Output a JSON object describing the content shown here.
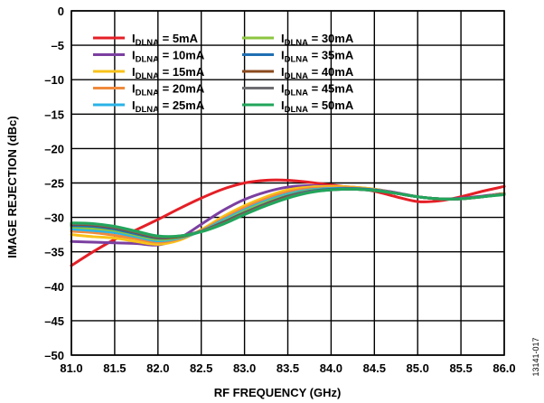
{
  "figure_id": "13141-017",
  "chart_data": {
    "type": "line",
    "title": "",
    "xlabel": "RF FREQUENCY (GHz)",
    "ylabel": "IMAGE REJECTION (dBc)",
    "xlim": [
      81.0,
      86.0
    ],
    "ylim": [
      -50,
      0
    ],
    "grid": true,
    "legend_position": "top-left",
    "x_ticks": [
      "81.0",
      "81.5",
      "82.0",
      "82.5",
      "83.0",
      "83.5",
      "84.0",
      "84.5",
      "85.0",
      "85.5",
      "86.0"
    ],
    "y_ticks": [
      "0",
      "–5",
      "–10",
      "–15",
      "–20",
      "–25",
      "–30",
      "–35",
      "–40",
      "–45",
      "–50"
    ],
    "x_tick_values": [
      81.0,
      81.5,
      82.0,
      82.5,
      83.0,
      83.5,
      84.0,
      84.5,
      85.0,
      85.5,
      86.0
    ],
    "y_tick_values": [
      0,
      -5,
      -10,
      -15,
      -20,
      -25,
      -30,
      -35,
      -40,
      -45,
      -50
    ],
    "x": [
      81.0,
      81.25,
      81.5,
      81.75,
      82.0,
      82.25,
      82.5,
      82.75,
      83.0,
      83.25,
      83.5,
      83.75,
      84.0,
      84.25,
      84.5,
      84.75,
      85.0,
      85.25,
      85.5,
      85.75,
      86.0
    ],
    "series": [
      {
        "name_main": "I",
        "name_sub": "DLNA",
        "name_rest": " = 5mA",
        "color": "#e41f26",
        "values": [
          -37.0,
          -35.0,
          -33.2,
          -31.8,
          -30.3,
          -28.7,
          -27.2,
          -25.9,
          -25.0,
          -24.6,
          -24.6,
          -24.9,
          -25.3,
          -25.7,
          -26.2,
          -27.0,
          -27.7,
          -27.6,
          -27.0,
          -26.2,
          -25.5
        ]
      },
      {
        "name_main": "I",
        "name_sub": "DLNA",
        "name_rest": " = 10mA",
        "color": "#7b3fa0",
        "values": [
          -33.5,
          -33.6,
          -33.7,
          -33.8,
          -34.0,
          -33.0,
          -31.0,
          -29.0,
          -27.4,
          -26.3,
          -25.6,
          -25.4,
          -25.5,
          -25.6,
          -25.9,
          -26.4,
          -27.0,
          -27.3,
          -27.2,
          -26.9,
          -26.5
        ]
      },
      {
        "name_main": "I",
        "name_sub": "DLNA",
        "name_rest": " = 15mA",
        "color": "#f8c21a",
        "values": [
          -32.5,
          -32.8,
          -33.0,
          -33.5,
          -33.9,
          -33.3,
          -31.8,
          -29.9,
          -28.3,
          -27.0,
          -26.0,
          -25.6,
          -25.5,
          -25.6,
          -25.9,
          -26.5,
          -27.0,
          -27.3,
          -27.3,
          -27.0,
          -26.5
        ]
      },
      {
        "name_main": "I",
        "name_sub": "DLNA",
        "name_rest": " = 20mA",
        "color": "#f08a3c",
        "values": [
          -32.0,
          -32.2,
          -32.6,
          -33.1,
          -33.6,
          -33.1,
          -31.9,
          -30.2,
          -28.6,
          -27.3,
          -26.3,
          -25.8,
          -25.7,
          -25.7,
          -26.0,
          -26.5,
          -27.0,
          -27.3,
          -27.3,
          -27.0,
          -26.6
        ]
      },
      {
        "name_main": "I",
        "name_sub": "DLNA",
        "name_rest": " = 25mA",
        "color": "#29b3e8",
        "values": [
          -31.7,
          -31.9,
          -32.2,
          -32.8,
          -33.4,
          -33.0,
          -32.0,
          -30.4,
          -28.9,
          -27.6,
          -26.6,
          -26.0,
          -25.8,
          -25.8,
          -26.0,
          -26.5,
          -27.0,
          -27.3,
          -27.3,
          -27.0,
          -26.6
        ]
      },
      {
        "name_main": "I",
        "name_sub": "DLNA",
        "name_rest": " = 30mA",
        "color": "#8cc63f",
        "values": [
          -31.4,
          -31.6,
          -31.9,
          -32.6,
          -33.2,
          -32.9,
          -32.0,
          -30.6,
          -29.1,
          -27.8,
          -26.8,
          -26.1,
          -25.9,
          -25.8,
          -26.0,
          -26.5,
          -27.0,
          -27.3,
          -27.3,
          -27.0,
          -26.6
        ]
      },
      {
        "name_main": "I",
        "name_sub": "DLNA",
        "name_rest": " = 35mA",
        "color": "#1f6fb2",
        "values": [
          -31.2,
          -31.3,
          -31.7,
          -32.4,
          -33.0,
          -32.8,
          -32.0,
          -30.7,
          -29.3,
          -28.0,
          -26.9,
          -26.2,
          -25.9,
          -25.8,
          -26.0,
          -26.5,
          -27.0,
          -27.3,
          -27.3,
          -27.0,
          -26.6
        ]
      },
      {
        "name_main": "I",
        "name_sub": "DLNA",
        "name_rest": " = 40mA",
        "color": "#8b4a1e",
        "values": [
          -31.0,
          -31.1,
          -31.5,
          -32.2,
          -32.9,
          -32.8,
          -32.0,
          -30.8,
          -29.4,
          -28.1,
          -27.0,
          -26.3,
          -26.0,
          -25.9,
          -26.1,
          -26.5,
          -27.0,
          -27.3,
          -27.3,
          -27.0,
          -26.6
        ]
      },
      {
        "name_main": "I",
        "name_sub": "DLNA",
        "name_rest": " = 45mA",
        "color": "#6d6e71",
        "values": [
          -30.9,
          -31.0,
          -31.4,
          -32.1,
          -32.8,
          -32.7,
          -32.0,
          -30.9,
          -29.5,
          -28.2,
          -27.1,
          -26.3,
          -26.0,
          -25.9,
          -26.1,
          -26.5,
          -27.0,
          -27.3,
          -27.3,
          -27.0,
          -26.6
        ]
      },
      {
        "name_main": "I",
        "name_sub": "DLNA",
        "name_rest": " = 50mA",
        "color": "#22a55b",
        "values": [
          -30.8,
          -30.9,
          -31.3,
          -32.0,
          -32.7,
          -32.7,
          -32.1,
          -31.0,
          -29.6,
          -28.3,
          -27.2,
          -26.4,
          -26.0,
          -25.9,
          -26.1,
          -26.5,
          -27.0,
          -27.3,
          -27.3,
          -27.0,
          -26.7
        ]
      }
    ]
  }
}
